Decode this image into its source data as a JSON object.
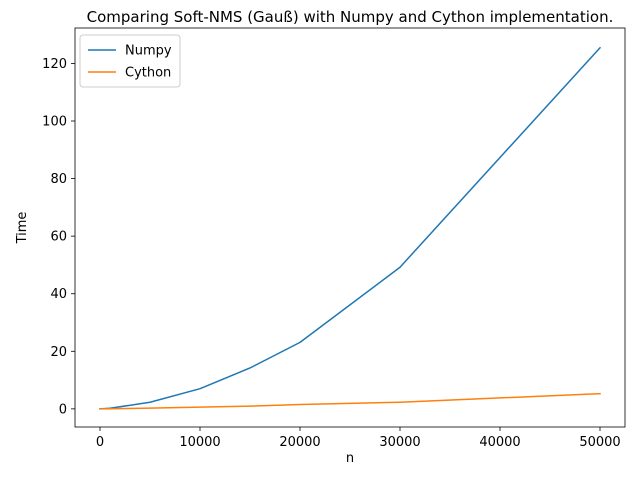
{
  "chart_data": {
    "type": "line",
    "title": "Comparing Soft-NMS (Gauß) with Numpy and Cython implementation.",
    "xlabel": "n",
    "ylabel": "Time",
    "xlim": [
      -2500,
      52500
    ],
    "ylim": [
      -6.3,
      132.3
    ],
    "xticks": [
      0,
      10000,
      20000,
      30000,
      40000,
      50000
    ],
    "yticks": [
      0,
      20,
      40,
      60,
      80,
      100,
      120
    ],
    "grid": false,
    "legend_position": "top-left",
    "series": [
      {
        "name": "Numpy",
        "color": "#1f77b4",
        "x": [
          0,
          1000,
          5000,
          10000,
          15000,
          20000,
          30000,
          50000
        ],
        "y": [
          0,
          0.2,
          2.3,
          7.0,
          14.2,
          23.1,
          49.2,
          125.4
        ]
      },
      {
        "name": "Cython",
        "color": "#ff7f0e",
        "x": [
          0,
          1000,
          5000,
          10000,
          15000,
          20000,
          30000,
          50000
        ],
        "y": [
          0,
          0.02,
          0.25,
          0.6,
          0.95,
          1.5,
          2.3,
          5.3
        ]
      }
    ]
  }
}
